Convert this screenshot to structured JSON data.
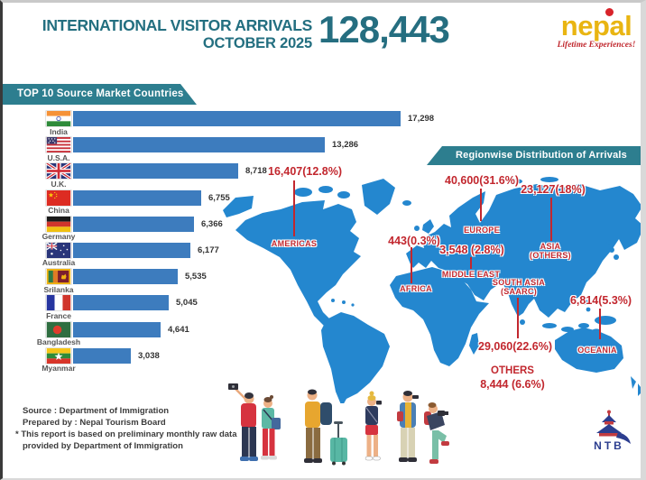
{
  "header": {
    "title_line1": "INTERNATIONAL VISITOR ARRIVALS",
    "title_line2": "OCTOBER 2025",
    "total_arrivals": "128,443",
    "brand": {
      "name": "nepal",
      "tagline": "Lifetime Experiences!"
    }
  },
  "chart_banner": "TOP 10 Source Market Countries",
  "chart_data": [
    {
      "type": "bar",
      "orientation": "horizontal",
      "title": "TOP 10 Source Market Countries",
      "categories": [
        "India",
        "U.S.A.",
        "U.K.",
        "China",
        "Germany",
        "Australia",
        "Srilanka",
        "France",
        "Bangladesh",
        "Myanmar"
      ],
      "values": [
        17298,
        13286,
        8718,
        6755,
        6366,
        6177,
        5535,
        5045,
        4641,
        3038
      ],
      "value_labels": [
        "17,298",
        "13,286",
        "8,718",
        "6,755",
        "6,366",
        "6,177",
        "5,535",
        "5,045",
        "4,641",
        "3,038"
      ],
      "xlim": [
        0,
        17298
      ],
      "bar_color": "#3d7cbe",
      "grid": false
    },
    {
      "type": "pie",
      "title": "Regionwise Distribution of Arrivals",
      "categories": [
        "EUROPE",
        "SOUTH ASIA (SAARC)",
        "ASIA (OTHERS)",
        "AMERICAS",
        "OTHERS",
        "OCEANIA",
        "MIDDLE EAST",
        "AFRICA"
      ],
      "values": [
        40600,
        29060,
        23127,
        16407,
        8444,
        6814,
        3548,
        443
      ],
      "percent": [
        31.6,
        22.6,
        18,
        12.8,
        6.6,
        5.3,
        2.8,
        0.3
      ],
      "layout": "callout labels over world map"
    }
  ],
  "map": {
    "banner": "Regionwise Distribution of Arrivals",
    "regions": {
      "americas": {
        "name": "AMERICAS",
        "value": "16,407(12.8%)"
      },
      "europe": {
        "name": "EUROPE",
        "value": "40,600(31.6%)"
      },
      "asia_others": {
        "name": "ASIA",
        "name2": "(OTHERS)",
        "value": "23,127(18%)"
      },
      "africa": {
        "name": "AFRICA",
        "value": "443(0.3%)"
      },
      "middle_east": {
        "name": "MIDDLE EAST",
        "value": "3,548 (2.8%)"
      },
      "south_asia": {
        "name": "SOUTH ASIA",
        "name2": "(SAARC)",
        "value": "29,060(22.6%)"
      },
      "oceania": {
        "name": "OCEANIA",
        "value": "6,814(5.3%)"
      },
      "others": {
        "name": "OTHERS",
        "value": "8,444 (6.6%)"
      }
    }
  },
  "footer": {
    "line1": "Source : Department of Immigration",
    "line2": "Prepared by : Nepal Tourism Board",
    "star": "*",
    "line3": "This report is based on preliminary monthly raw data",
    "line4": "provided by Department of Immigration",
    "ntb": "NTB"
  },
  "colors": {
    "teal_banner": "#2d7e8f",
    "title_teal": "#236f80",
    "bar_blue": "#3d7cbe",
    "map_blue": "#2487cf",
    "label_red": "#c2272e",
    "brand_yellow": "#e9b512"
  }
}
